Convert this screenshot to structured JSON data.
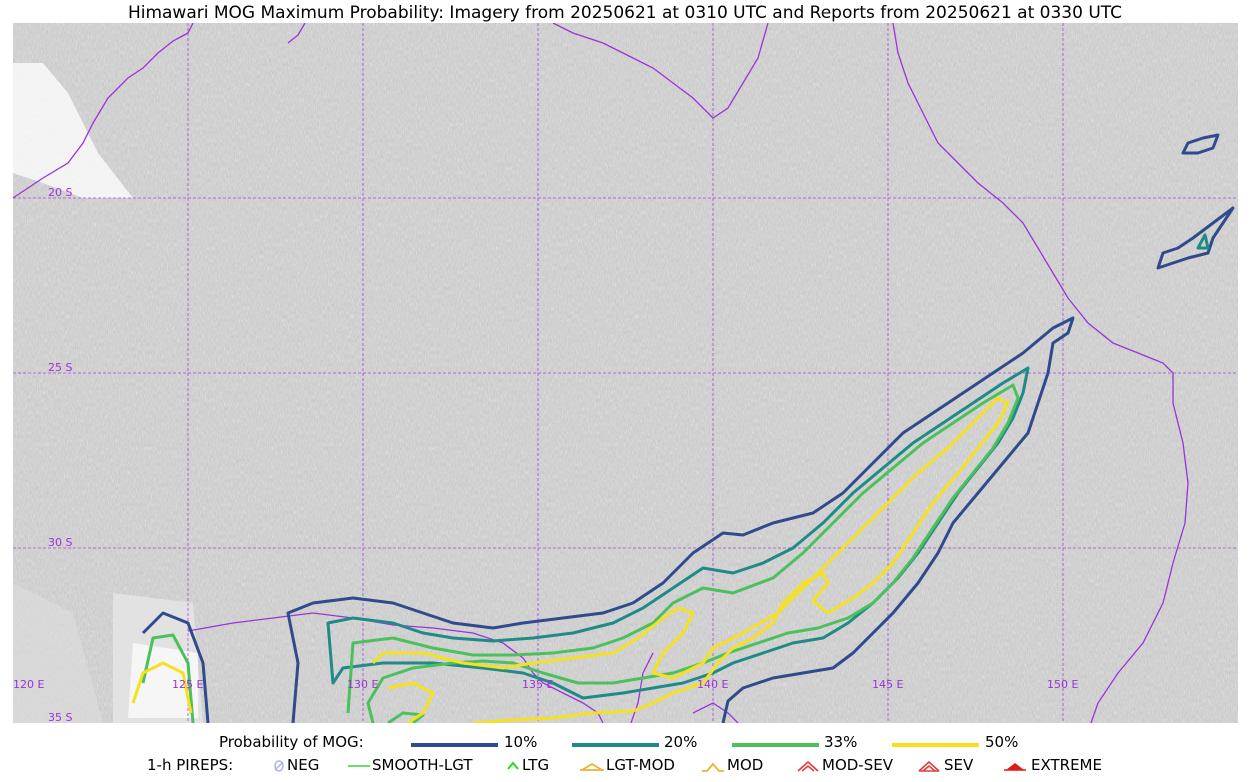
{
  "title": "Himawari MOG Maximum Probability: Imagery from 20250621 at 0310 UTC and Reports from 20250621 at 0330 UTC",
  "colors": {
    "grid": "#9b34d6",
    "coast": "#9b34d6",
    "p10": "#2f4b8c",
    "p20": "#1f8a86",
    "p33": "#4bc05c",
    "p50": "#f5e11f"
  },
  "map": {
    "lon_range": [
      120,
      155
    ],
    "lat_range": [
      -35,
      -15
    ],
    "lat_labels": [
      {
        "lat": -20,
        "text": "20 S"
      },
      {
        "lat": -25,
        "text": "25 S"
      },
      {
        "lat": -30,
        "text": "30 S"
      },
      {
        "lat": -35,
        "text": "35 S"
      }
    ],
    "lon_labels": [
      {
        "lon": 120,
        "text": "120 E"
      },
      {
        "lon": 125,
        "text": "125 E"
      },
      {
        "lon": 130,
        "text": "130 E"
      },
      {
        "lon": 135,
        "text": "135 E"
      },
      {
        "lon": 140,
        "text": "140 E"
      },
      {
        "lon": 145,
        "text": "145 E"
      },
      {
        "lon": 150,
        "text": "150 E"
      }
    ]
  },
  "legend": {
    "prob_label": "Probability of MOG:",
    "prob_items": [
      "10%",
      "20%",
      "33%",
      "50%"
    ],
    "pirep_label": "1-h PIREPS:",
    "pirep_items": [
      "NEG",
      "SMOOTH-LGT",
      "LTG",
      "LGT-MOD",
      "MOD",
      "MOD-SEV",
      "SEV",
      "EXTREME"
    ]
  }
}
